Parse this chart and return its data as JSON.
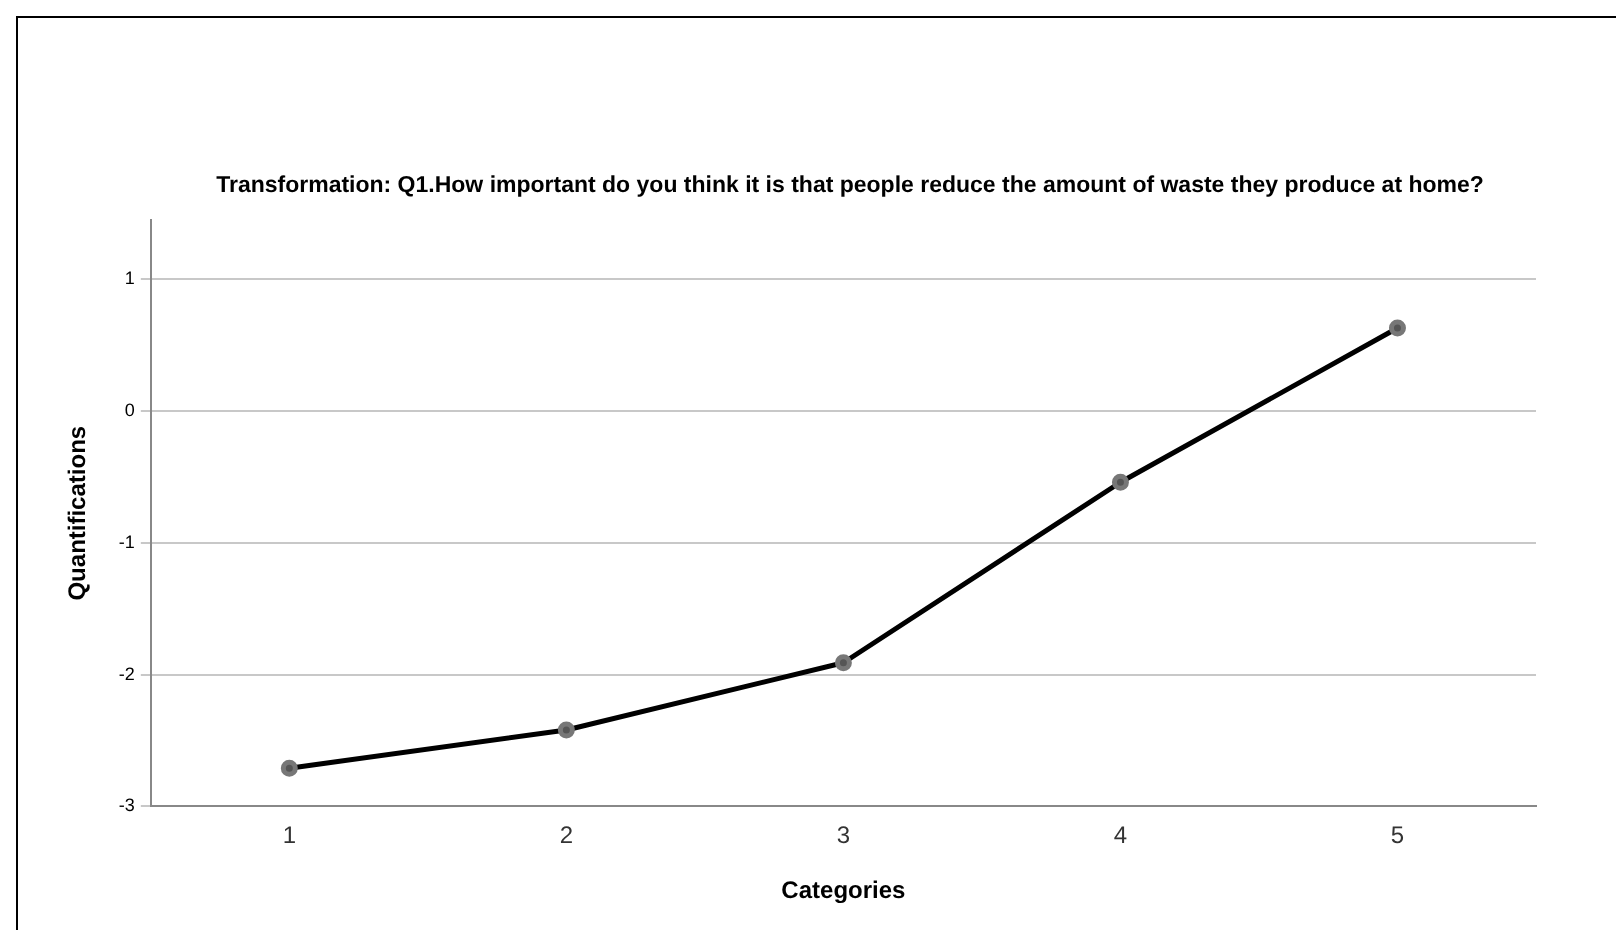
{
  "chart_data": {
    "type": "line",
    "title": "Transformation: Q1.How important do you think it is that people reduce the amount of waste they produce at home?",
    "xlabel": "Categories",
    "ylabel": "Quantifications",
    "categories": [
      "1",
      "2",
      "3",
      "4",
      "5"
    ],
    "series": [
      {
        "color": "#000000",
        "values": [
          -2.71,
          -2.42,
          -1.91,
          -0.54,
          0.63
        ]
      }
    ],
    "ylim": [
      -3,
      1.45
    ],
    "yticks": [
      -3,
      -2,
      -1,
      0,
      1
    ],
    "grid": "y",
    "legend": false,
    "marker": "circle",
    "line_style": "solid"
  }
}
